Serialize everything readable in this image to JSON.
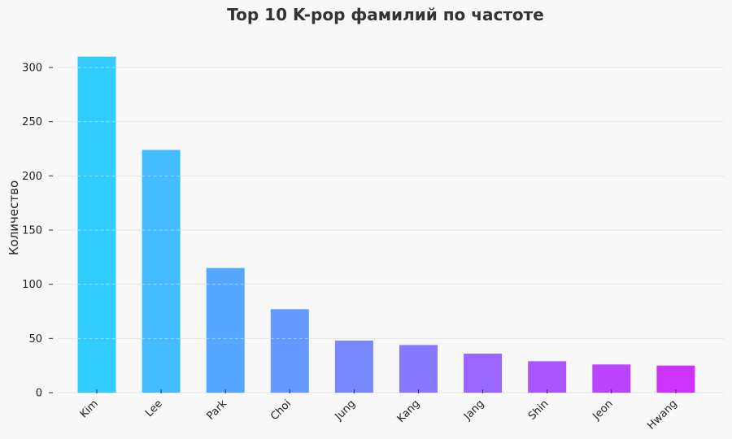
{
  "chart_data": {
    "type": "bar",
    "title": "Top 10 K-pop фамилий по частоте",
    "xlabel": "",
    "ylabel": "Количество",
    "categories": [
      "Kim",
      "Lee",
      "Park",
      "Choi",
      "Jung",
      "Kang",
      "Jang",
      "Shin",
      "Jeon",
      "Hwang"
    ],
    "values": [
      310,
      224,
      115,
      77,
      48,
      44,
      36,
      29,
      26,
      25
    ],
    "ylim": [
      0,
      330
    ],
    "yticks": [
      0,
      50,
      100,
      150,
      200,
      250,
      300
    ],
    "grid": true,
    "legend": "none",
    "colors": [
      "#33ccff",
      "#44bbff",
      "#55a8ff",
      "#6699ff",
      "#7788ff",
      "#8877ff",
      "#9966ff",
      "#aa55ff",
      "#bb44ff",
      "#cc33ff"
    ]
  }
}
